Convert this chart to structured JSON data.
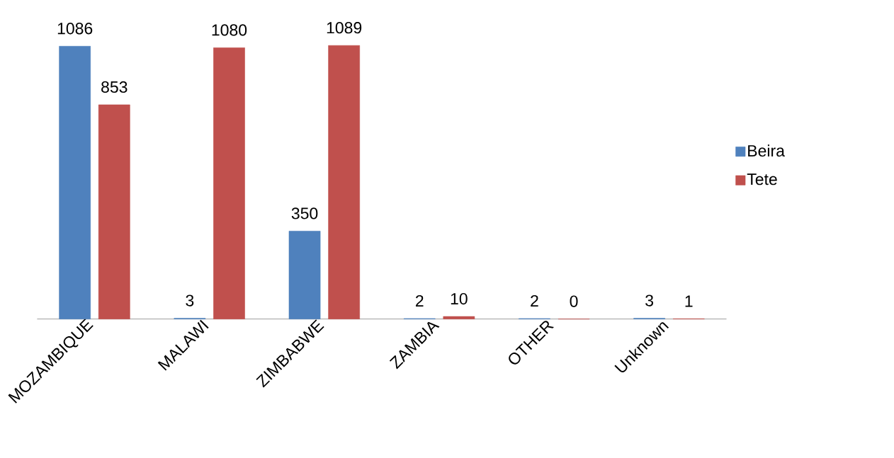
{
  "chart_data": {
    "type": "bar",
    "categories": [
      "MOZAMBIQUE",
      "MALAWI",
      "ZIMBABWE",
      "ZAMBIA",
      "OTHER",
      "Unknown"
    ],
    "series": [
      {
        "name": "Beira",
        "color": "#4f81bd",
        "values": [
          1086,
          3,
          350,
          2,
          2,
          3
        ]
      },
      {
        "name": "Tete",
        "color": "#c0504d",
        "values": [
          853,
          1080,
          1089,
          10,
          0,
          1
        ]
      }
    ],
    "data_labels": true,
    "legend": "right"
  }
}
